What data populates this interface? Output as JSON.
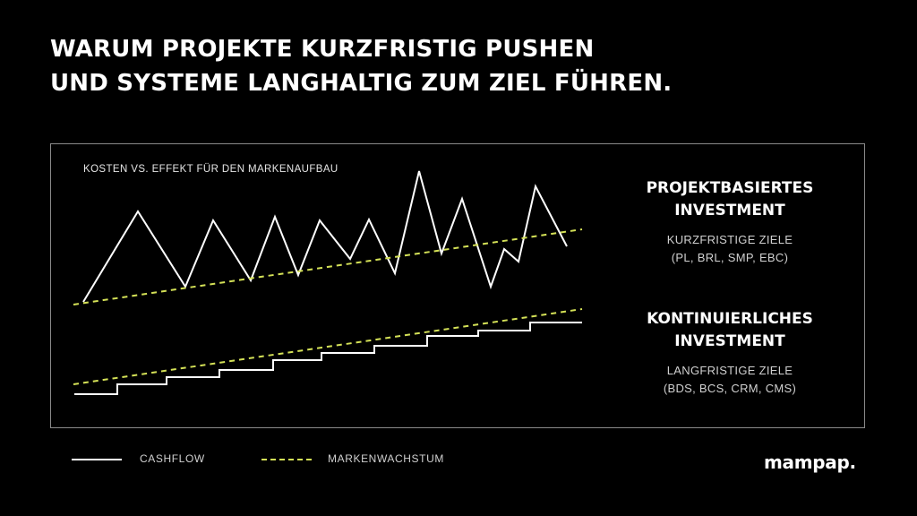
{
  "headline": {
    "line1": "WARUM PROJEKTE KURZFRISTIG PUSHEN",
    "line2": "UND SYSTEME LANGHALTIG ZUM ZIEL FÜHREN."
  },
  "diagram": {
    "label": "KOSTEN VS. EFFEKT FÜR DEN MARKENAUFBAU"
  },
  "project_investment": {
    "title_line1": "PROJEKTBASIERTES",
    "title_line2": "INVESTMENT",
    "goals": "KURZFRISTIGE ZIELE",
    "examples": "(PL, BRL, SMP, EBC)"
  },
  "continuous_investment": {
    "title_line1": "KONTINUIERLICHES",
    "title_line2": "INVESTMENT",
    "goals": "LANGFRISTIGE ZIELE",
    "examples": "(BDS, BCS, CRM, CMS)"
  },
  "legend": {
    "cashflow": "CASHFLOW",
    "brand_growth": "MARKENWACHSTUM"
  },
  "logo": "mampap.",
  "colors": {
    "background": "#000000",
    "cashflow_line": "#ffffff",
    "brand_growth_line": "#d4e157",
    "panel_border": "#8a8a8a"
  }
}
